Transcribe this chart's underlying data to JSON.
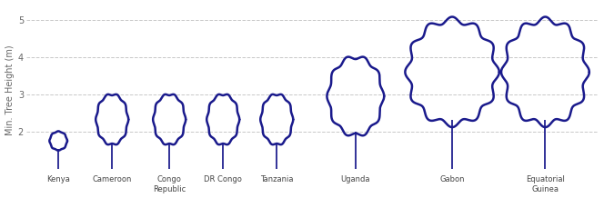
{
  "countries": [
    "Kenya",
    "Cameroon",
    "Congo\nRepublic",
    "DR Congo",
    "Tanzania",
    "Uganda",
    "Gabon",
    "Equatorial\nGuinea"
  ],
  "crown_tops": [
    2.0,
    3.0,
    3.0,
    3.0,
    3.0,
    4.0,
    5.0,
    5.0
  ],
  "trunk_bottoms": [
    1.0,
    1.0,
    1.0,
    1.0,
    1.0,
    1.0,
    1.0,
    1.0
  ],
  "trunk_tops": [
    1.5,
    1.65,
    1.65,
    1.65,
    1.65,
    1.9,
    2.2,
    2.2
  ],
  "crown_r_x": [
    0.12,
    0.22,
    0.22,
    0.22,
    0.22,
    0.38,
    0.62,
    0.58
  ],
  "x_positions": [
    0.55,
    1.3,
    2.1,
    2.85,
    3.6,
    4.7,
    6.05,
    7.35
  ],
  "tree_color": "#1a1a8c",
  "bg_color": "#ffffff",
  "ylabel": "Min. Tree Height (m)",
  "yticks": [
    2,
    3,
    4,
    5
  ],
  "ylim": [
    0.85,
    5.4
  ],
  "xlim": [
    0.1,
    8.1
  ],
  "label_fontsize": 6.0,
  "axis_fontsize": 7.0,
  "linewidth": 1.8,
  "num_bumps": [
    8,
    10,
    10,
    10,
    10,
    10,
    12,
    12
  ],
  "bump_amp": [
    0.04,
    0.04,
    0.04,
    0.04,
    0.04,
    0.05,
    0.06,
    0.06
  ]
}
